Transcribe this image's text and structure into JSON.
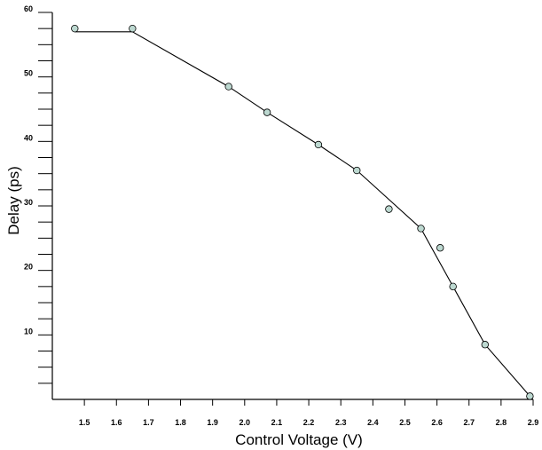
{
  "chart_data": {
    "type": "scatter",
    "title": "",
    "xlabel": "Control Voltage (V)",
    "ylabel": "Delay (ps)",
    "xlim": [
      1.4,
      2.9
    ],
    "ylim": [
      0,
      60
    ],
    "x_ticks": [
      "1.5",
      "1.6",
      "1.7",
      "1.8",
      "1.9",
      "2.0",
      "2.1",
      "2.2",
      "2.3",
      "2.4",
      "2.5",
      "2.6",
      "2.7",
      "2.8",
      "2.9"
    ],
    "y_ticks": [
      "10",
      "20",
      "30",
      "40",
      "50",
      "60"
    ],
    "y_minor_step": 2.5,
    "grid": false,
    "series": [
      {
        "kind": "markers",
        "marker_color": "#bcd8d0",
        "points": [
          {
            "x": 1.47,
            "y": 57.5
          },
          {
            "x": 1.65,
            "y": 57.5
          },
          {
            "x": 1.95,
            "y": 48.5
          },
          {
            "x": 2.07,
            "y": 44.5
          },
          {
            "x": 2.23,
            "y": 39.5
          },
          {
            "x": 2.35,
            "y": 35.5
          },
          {
            "x": 2.45,
            "y": 29.5
          },
          {
            "x": 2.55,
            "y": 26.5
          },
          {
            "x": 2.61,
            "y": 23.5
          },
          {
            "x": 2.65,
            "y": 17.5
          },
          {
            "x": 2.75,
            "y": 8.5
          },
          {
            "x": 2.89,
            "y": 0.5
          }
        ]
      },
      {
        "kind": "line",
        "line_color": "#000000",
        "points": [
          {
            "x": 1.47,
            "y": 57.0
          },
          {
            "x": 1.65,
            "y": 57.0
          },
          {
            "x": 1.95,
            "y": 48.5
          },
          {
            "x": 2.07,
            "y": 44.5
          },
          {
            "x": 2.23,
            "y": 39.5
          },
          {
            "x": 2.35,
            "y": 35.5
          },
          {
            "x": 2.55,
            "y": 26.5
          },
          {
            "x": 2.65,
            "y": 17.5
          },
          {
            "x": 2.75,
            "y": 8.5
          },
          {
            "x": 2.89,
            "y": 0.5
          }
        ]
      }
    ]
  }
}
